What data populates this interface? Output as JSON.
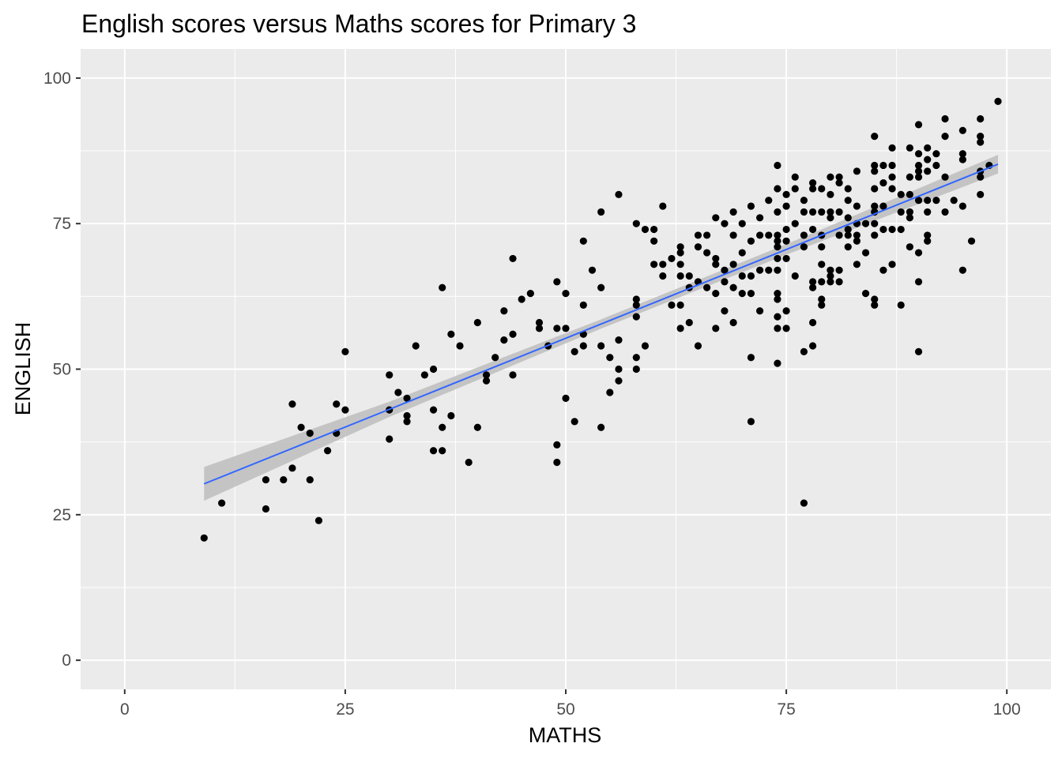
{
  "chart_data": {
    "type": "scatter",
    "title": "English scores versus Maths scores for Primary 3",
    "xlabel": "MATHS",
    "ylabel": "ENGLISH",
    "xlim": [
      -5,
      105
    ],
    "ylim": [
      -5,
      105
    ],
    "xticks": [
      0,
      25,
      50,
      75,
      100
    ],
    "yticks": [
      0,
      25,
      50,
      75,
      100
    ],
    "grid": true,
    "point_color": "#000000",
    "line_color": "#3366FF",
    "ribbon_color": "#bdbdbd",
    "panel_color": "#EBEBEB",
    "points": [
      [
        9,
        21
      ],
      [
        11,
        27
      ],
      [
        16,
        31
      ],
      [
        16,
        26
      ],
      [
        18,
        31
      ],
      [
        19,
        44
      ],
      [
        19,
        33
      ],
      [
        20,
        40
      ],
      [
        21,
        39
      ],
      [
        21,
        31
      ],
      [
        22,
        24
      ],
      [
        23,
        36
      ],
      [
        24,
        44
      ],
      [
        24,
        39
      ],
      [
        25,
        53
      ],
      [
        25,
        43
      ],
      [
        30,
        49
      ],
      [
        30,
        43
      ],
      [
        30,
        38
      ],
      [
        31,
        46
      ],
      [
        32,
        45
      ],
      [
        32,
        42
      ],
      [
        32,
        41
      ],
      [
        33,
        54
      ],
      [
        34,
        49
      ],
      [
        35,
        50
      ],
      [
        35,
        43
      ],
      [
        35,
        36
      ],
      [
        36,
        64
      ],
      [
        36,
        40
      ],
      [
        36,
        36
      ],
      [
        37,
        56
      ],
      [
        37,
        42
      ],
      [
        38,
        54
      ],
      [
        39,
        34
      ],
      [
        40,
        58
      ],
      [
        40,
        40
      ],
      [
        41,
        49
      ],
      [
        41,
        48
      ],
      [
        42,
        52
      ],
      [
        43,
        60
      ],
      [
        43,
        55
      ],
      [
        44,
        69
      ],
      [
        44,
        56
      ],
      [
        44,
        49
      ],
      [
        45,
        62
      ],
      [
        46,
        63
      ],
      [
        47,
        58
      ],
      [
        47,
        57
      ],
      [
        48,
        54
      ],
      [
        49,
        65
      ],
      [
        49,
        57
      ],
      [
        49,
        37
      ],
      [
        49,
        34
      ],
      [
        50,
        63
      ],
      [
        50,
        57
      ],
      [
        50,
        45
      ],
      [
        51,
        53
      ],
      [
        51,
        41
      ],
      [
        52,
        72
      ],
      [
        52,
        61
      ],
      [
        52,
        56
      ],
      [
        52,
        54
      ],
      [
        53,
        67
      ],
      [
        54,
        77
      ],
      [
        54,
        64
      ],
      [
        54,
        54
      ],
      [
        54,
        40
      ],
      [
        55,
        52
      ],
      [
        55,
        46
      ],
      [
        56,
        80
      ],
      [
        56,
        55
      ],
      [
        56,
        50
      ],
      [
        56,
        48
      ],
      [
        58,
        75
      ],
      [
        58,
        62
      ],
      [
        58,
        61
      ],
      [
        58,
        59
      ],
      [
        58,
        52
      ],
      [
        58,
        50
      ],
      [
        59,
        74
      ],
      [
        59,
        54
      ],
      [
        60,
        74
      ],
      [
        60,
        72
      ],
      [
        60,
        68
      ],
      [
        61,
        78
      ],
      [
        61,
        68
      ],
      [
        61,
        66
      ],
      [
        62,
        69
      ],
      [
        62,
        61
      ],
      [
        63,
        71
      ],
      [
        63,
        70
      ],
      [
        63,
        68
      ],
      [
        63,
        66
      ],
      [
        63,
        61
      ],
      [
        63,
        57
      ],
      [
        64,
        66
      ],
      [
        64,
        64
      ],
      [
        64,
        58
      ],
      [
        65,
        73
      ],
      [
        65,
        71
      ],
      [
        65,
        65
      ],
      [
        65,
        54
      ],
      [
        66,
        73
      ],
      [
        66,
        70
      ],
      [
        66,
        64
      ],
      [
        67,
        76
      ],
      [
        67,
        69
      ],
      [
        67,
        68
      ],
      [
        67,
        63
      ],
      [
        67,
        57
      ],
      [
        68,
        75
      ],
      [
        68,
        67
      ],
      [
        68,
        65
      ],
      [
        68,
        60
      ],
      [
        69,
        77
      ],
      [
        69,
        73
      ],
      [
        69,
        68
      ],
      [
        69,
        64
      ],
      [
        69,
        58
      ],
      [
        70,
        75
      ],
      [
        70,
        70
      ],
      [
        70,
        66
      ],
      [
        70,
        63
      ],
      [
        71,
        78
      ],
      [
        71,
        72
      ],
      [
        71,
        66
      ],
      [
        71,
        63
      ],
      [
        71,
        52
      ],
      [
        71,
        41
      ],
      [
        72,
        76
      ],
      [
        72,
        73
      ],
      [
        72,
        67
      ],
      [
        72,
        60
      ],
      [
        73,
        79
      ],
      [
        73,
        73
      ],
      [
        73,
        67
      ],
      [
        74,
        85
      ],
      [
        74,
        81
      ],
      [
        74,
        77
      ],
      [
        74,
        73
      ],
      [
        74,
        72
      ],
      [
        74,
        71
      ],
      [
        74,
        69
      ],
      [
        74,
        67
      ],
      [
        74,
        63
      ],
      [
        74,
        62
      ],
      [
        74,
        59
      ],
      [
        74,
        57
      ],
      [
        74,
        51
      ],
      [
        75,
        80
      ],
      [
        75,
        78
      ],
      [
        75,
        74
      ],
      [
        75,
        72
      ],
      [
        75,
        69
      ],
      [
        75,
        60
      ],
      [
        75,
        57
      ],
      [
        76,
        83
      ],
      [
        76,
        81
      ],
      [
        76,
        75
      ],
      [
        76,
        66
      ],
      [
        77,
        79
      ],
      [
        77,
        77
      ],
      [
        77,
        73
      ],
      [
        77,
        71
      ],
      [
        77,
        53
      ],
      [
        77,
        27
      ],
      [
        78,
        82
      ],
      [
        78,
        81
      ],
      [
        78,
        77
      ],
      [
        78,
        74
      ],
      [
        78,
        65
      ],
      [
        78,
        64
      ],
      [
        78,
        58
      ],
      [
        78,
        54
      ],
      [
        79,
        81
      ],
      [
        79,
        77
      ],
      [
        79,
        73
      ],
      [
        79,
        71
      ],
      [
        79,
        68
      ],
      [
        79,
        65
      ],
      [
        79,
        62
      ],
      [
        79,
        61
      ],
      [
        80,
        83
      ],
      [
        80,
        80
      ],
      [
        80,
        77
      ],
      [
        80,
        76
      ],
      [
        80,
        67
      ],
      [
        80,
        66
      ],
      [
        80,
        65
      ],
      [
        81,
        83
      ],
      [
        81,
        82
      ],
      [
        81,
        77
      ],
      [
        81,
        73
      ],
      [
        81,
        67
      ],
      [
        81,
        65
      ],
      [
        82,
        81
      ],
      [
        82,
        79
      ],
      [
        82,
        76
      ],
      [
        82,
        74
      ],
      [
        82,
        73
      ],
      [
        82,
        71
      ],
      [
        83,
        84
      ],
      [
        83,
        78
      ],
      [
        83,
        75
      ],
      [
        83,
        73
      ],
      [
        83,
        72
      ],
      [
        83,
        68
      ],
      [
        84,
        75
      ],
      [
        84,
        70
      ],
      [
        84,
        63
      ],
      [
        85,
        90
      ],
      [
        85,
        85
      ],
      [
        85,
        84
      ],
      [
        85,
        81
      ],
      [
        85,
        78
      ],
      [
        85,
        77
      ],
      [
        85,
        75
      ],
      [
        85,
        73
      ],
      [
        85,
        62
      ],
      [
        85,
        61
      ],
      [
        86,
        85
      ],
      [
        86,
        82
      ],
      [
        86,
        78
      ],
      [
        86,
        74
      ],
      [
        86,
        67
      ],
      [
        87,
        88
      ],
      [
        87,
        85
      ],
      [
        87,
        83
      ],
      [
        87,
        81
      ],
      [
        87,
        74
      ],
      [
        87,
        68
      ],
      [
        88,
        80
      ],
      [
        88,
        77
      ],
      [
        88,
        74
      ],
      [
        88,
        61
      ],
      [
        89,
        88
      ],
      [
        89,
        83
      ],
      [
        89,
        80
      ],
      [
        89,
        77
      ],
      [
        89,
        76
      ],
      [
        89,
        71
      ],
      [
        90,
        92
      ],
      [
        90,
        87
      ],
      [
        90,
        85
      ],
      [
        90,
        84
      ],
      [
        90,
        83
      ],
      [
        90,
        79
      ],
      [
        90,
        70
      ],
      [
        90,
        65
      ],
      [
        90,
        53
      ],
      [
        91,
        88
      ],
      [
        91,
        86
      ],
      [
        91,
        84
      ],
      [
        91,
        79
      ],
      [
        91,
        77
      ],
      [
        91,
        73
      ],
      [
        91,
        72
      ],
      [
        92,
        87
      ],
      [
        92,
        85
      ],
      [
        92,
        79
      ],
      [
        93,
        93
      ],
      [
        93,
        90
      ],
      [
        93,
        83
      ],
      [
        93,
        77
      ],
      [
        94,
        79
      ],
      [
        95,
        91
      ],
      [
        95,
        87
      ],
      [
        95,
        86
      ],
      [
        95,
        78
      ],
      [
        95,
        67
      ],
      [
        96,
        72
      ],
      [
        97,
        93
      ],
      [
        97,
        90
      ],
      [
        97,
        89
      ],
      [
        97,
        84
      ],
      [
        97,
        83
      ],
      [
        97,
        80
      ],
      [
        98,
        85
      ],
      [
        99,
        96
      ]
    ],
    "smooth": {
      "method": "lm",
      "x": [
        9,
        30,
        54,
        75,
        99
      ],
      "y": [
        30.3,
        43.1,
        57.75,
        70.56,
        85.2
      ],
      "ymin": [
        27.4,
        41.8,
        56.95,
        69.66,
        83.6
      ],
      "ymax": [
        33.2,
        44.4,
        58.55,
        71.46,
        86.8
      ]
    }
  }
}
